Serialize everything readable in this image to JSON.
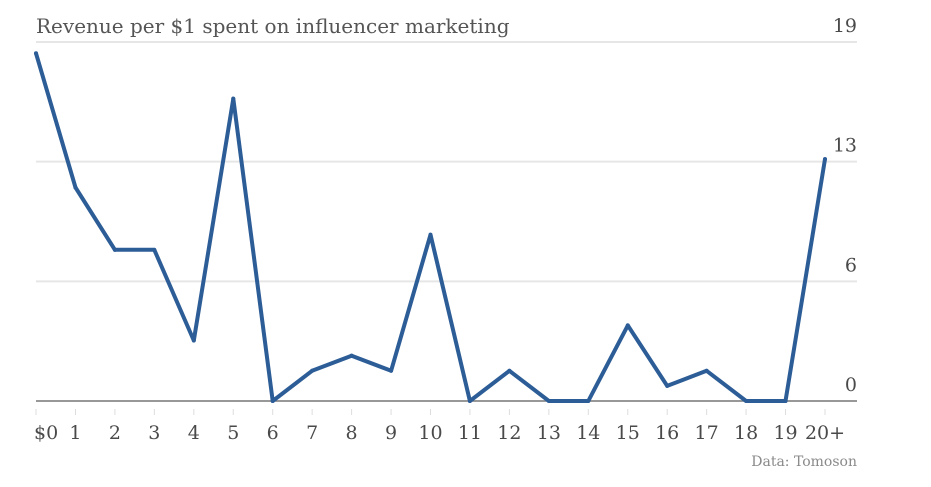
{
  "chart_data": {
    "type": "line",
    "title": "Revenue per $1 spent on influencer marketing",
    "source": "Data: Tomoson",
    "xlabel": "",
    "ylabel": "",
    "categories": [
      "$0",
      "1",
      "2",
      "3",
      "4",
      "5",
      "6",
      "7",
      "8",
      "9",
      "10",
      "11",
      "12",
      "13",
      "14",
      "15",
      "16",
      "17",
      "18",
      "19",
      "20+"
    ],
    "series": [
      {
        "values": [
          18.4,
          11.3,
          8.0,
          8.0,
          3.2,
          16.0,
          0,
          1.6,
          2.4,
          1.6,
          8.8,
          0,
          1.6,
          0,
          0,
          4.0,
          0.8,
          1.6,
          0,
          0,
          12.8
        ]
      }
    ],
    "ylim": [
      0,
      19
    ],
    "yticks": [
      {
        "value": 0,
        "label": "0"
      },
      {
        "value": 6.33,
        "label": "6"
      },
      {
        "value": 12.67,
        "label": "13"
      },
      {
        "value": 19,
        "label": "19"
      }
    ],
    "y_axis_side": "right",
    "grid": true,
    "colors": {
      "line": "#2d5d97",
      "grid": "#e6e6e6",
      "baseline": "#777777",
      "text": "#4a4a4a"
    }
  }
}
